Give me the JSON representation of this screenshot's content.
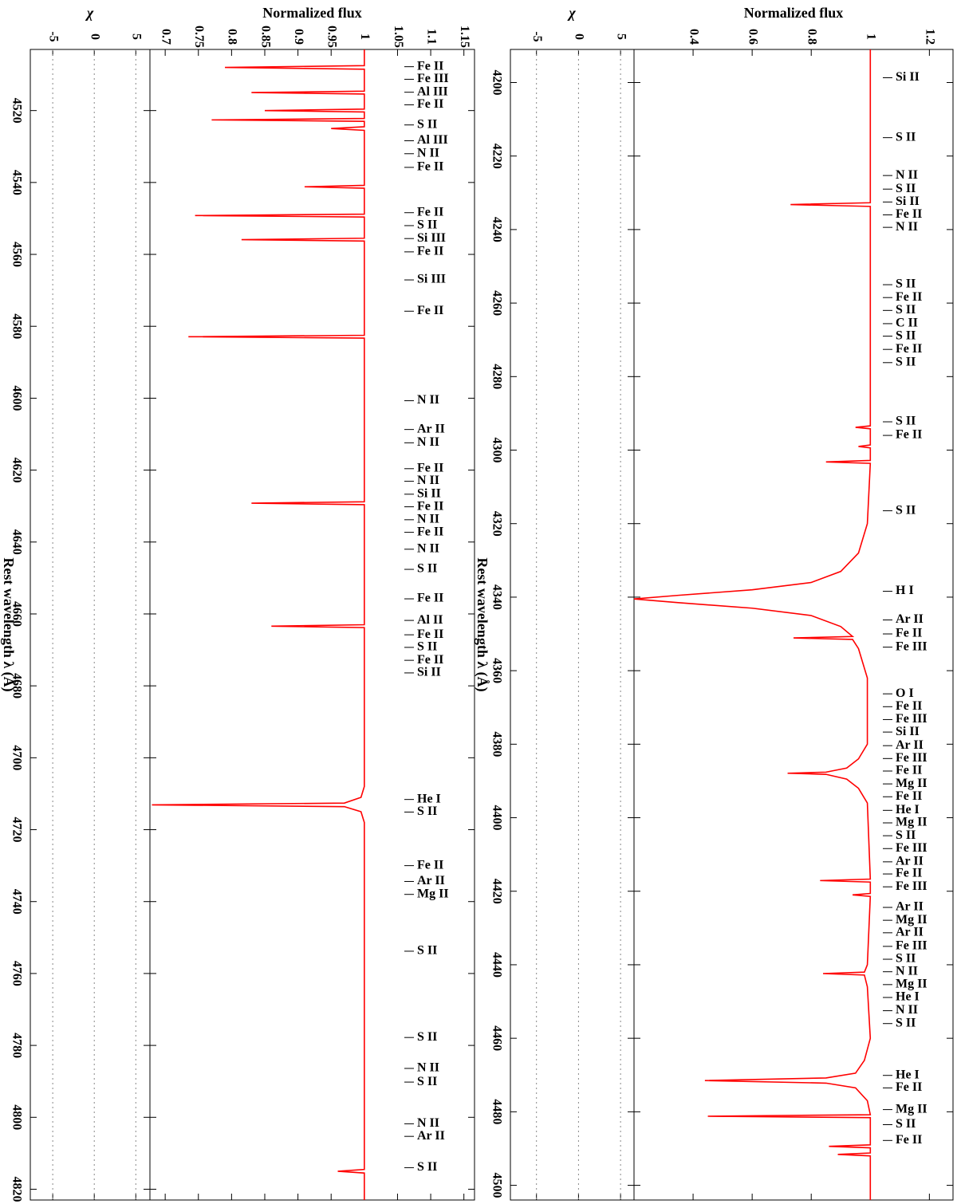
{
  "chart_data": [
    {
      "type": "line",
      "x_label": "Rest wavelength λ (Å)",
      "y_label": "Normalized flux",
      "xlim": [
        4191,
        4504
      ],
      "xticks": [
        4200,
        4220,
        4240,
        4260,
        4280,
        4300,
        4320,
        4340,
        4360,
        4380,
        4400,
        4420,
        4440,
        4460,
        4480,
        4500
      ],
      "ylim": [
        0.2,
        1.28
      ],
      "yticks": [
        0.4,
        0.6,
        0.8,
        1,
        1.2
      ],
      "series": [
        {
          "color": "#ff0000",
          "x": [
            4191,
            4232.7,
            4233.2,
            4233.7,
            4290,
            4293.4,
            4293.8,
            4294.2,
            4298.6,
            4299,
            4299.4,
            4302.8,
            4303.2,
            4303.6,
            4320,
            4328,
            4333,
            4336,
            4338,
            4339.5,
            4340.5,
            4341.5,
            4343,
            4345,
            4348,
            4350.7,
            4351.1,
            4351.5,
            4354,
            4362,
            4380,
            4384,
            4386.5,
            4387.6,
            4387.9,
            4388.2,
            4389.5,
            4392,
            4396,
            4416.7,
            4417.1,
            4417.5,
            4420.6,
            4421,
            4421.4,
            4440,
            4442,
            4442.4,
            4442.8,
            4446,
            4460,
            4466,
            4469.5,
            4470.8,
            4471.5,
            4472.2,
            4473.5,
            4477,
            4480.8,
            4481.2,
            4481.6,
            4489,
            4489.4,
            4489.8,
            4491.2,
            4491.6,
            4492,
            4504
          ],
          "values": [
            1,
            1,
            0.73,
            1,
            1,
            1,
            0.95,
            1,
            1,
            0.96,
            1,
            1,
            0.85,
            1,
            0.99,
            0.96,
            0.9,
            0.8,
            0.6,
            0.35,
            0.2,
            0.35,
            0.6,
            0.8,
            0.9,
            0.94,
            0.74,
            0.94,
            0.96,
            0.99,
            0.99,
            0.96,
            0.92,
            0.85,
            0.72,
            0.85,
            0.92,
            0.96,
            0.99,
            1,
            0.83,
            1,
            1,
            0.94,
            1,
            0.99,
            0.98,
            0.84,
            0.98,
            0.99,
            1,
            0.98,
            0.95,
            0.85,
            0.44,
            0.85,
            0.95,
            0.99,
            1,
            0.45,
            1,
            1,
            0.86,
            1,
            1,
            0.89,
            1,
            1
          ]
        }
      ],
      "residual": {
        "y_label": "χ",
        "ylim": [
          -8.1,
          6.6
        ],
        "yticks": [
          -5,
          0,
          5
        ]
      },
      "line_ids": [
        {
          "label": "Si II",
          "x": 4198.7
        },
        {
          "label": "S II",
          "x": 4215
        },
        {
          "label": "N II",
          "x": 4225.3
        },
        {
          "label": "S II",
          "x": 4229
        },
        {
          "label": "Si II",
          "x": 4232.5
        },
        {
          "label": "Fe II",
          "x": 4236
        },
        {
          "label": "N II",
          "x": 4239.4
        },
        {
          "label": "S II",
          "x": 4255
        },
        {
          "label": "Fe II",
          "x": 4258.5
        },
        {
          "label": "S II",
          "x": 4262
        },
        {
          "label": "C II",
          "x": 4265.6
        },
        {
          "label": "S II",
          "x": 4269
        },
        {
          "label": "Fe II",
          "x": 4272.6
        },
        {
          "label": "S II",
          "x": 4276.2
        },
        {
          "label": "S II",
          "x": 4292.3
        },
        {
          "label": "Fe II",
          "x": 4296
        },
        {
          "label": "S II",
          "x": 4316.5
        },
        {
          "label": "H I",
          "x": 4338.4
        },
        {
          "label": "Ar II",
          "x": 4346.2
        },
        {
          "label": "Fe II",
          "x": 4350
        },
        {
          "label": "Fe III",
          "x": 4353.6
        },
        {
          "label": "O I",
          "x": 4366.3
        },
        {
          "label": "Fe II",
          "x": 4369.8
        },
        {
          "label": "Fe III",
          "x": 4373.3
        },
        {
          "label": "Si II",
          "x": 4376.7
        },
        {
          "label": "Ar II",
          "x": 4380.4
        },
        {
          "label": "Fe III",
          "x": 4383.9
        },
        {
          "label": "Fe II",
          "x": 4387.3
        },
        {
          "label": "Mg II",
          "x": 4390.8
        },
        {
          "label": "Fe II",
          "x": 4394.3
        },
        {
          "label": "He I",
          "x": 4398
        },
        {
          "label": "Mg II",
          "x": 4401.4
        },
        {
          "label": "S II",
          "x": 4404.9
        },
        {
          "label": "Fe III",
          "x": 4408.4
        },
        {
          "label": "Ar II",
          "x": 4412
        },
        {
          "label": "Fe II",
          "x": 4415.3
        },
        {
          "label": "Fe III",
          "x": 4418.8
        },
        {
          "label": "Ar II",
          "x": 4424.4
        },
        {
          "label": "Mg II",
          "x": 4427.9
        },
        {
          "label": "Ar II",
          "x": 4431.3
        },
        {
          "label": "Fe III",
          "x": 4435
        },
        {
          "label": "S II",
          "x": 4438.5
        },
        {
          "label": "N II",
          "x": 4441.9
        },
        {
          "label": "Mg II",
          "x": 4445.4
        },
        {
          "label": "He I",
          "x": 4448.9
        },
        {
          "label": "N II",
          "x": 4452.5
        },
        {
          "label": "S II",
          "x": 4456
        },
        {
          "label": "He I",
          "x": 4470.1
        },
        {
          "label": "Fe II",
          "x": 4473.5
        },
        {
          "label": "Mg II",
          "x": 4479.4
        },
        {
          "label": "S II",
          "x": 4483.5
        },
        {
          "label": "Fe II",
          "x": 4487.8
        }
      ]
    },
    {
      "type": "line",
      "x_label": "Rest wavelength λ (Å)",
      "y_label": "Normalized flux",
      "xlim": [
        4503,
        4823
      ],
      "xticks": [
        4520,
        4540,
        4560,
        4580,
        4600,
        4620,
        4640,
        4660,
        4680,
        4700,
        4720,
        4740,
        4760,
        4780,
        4800,
        4820
      ],
      "ylim": [
        0.677,
        1.166
      ],
      "yticks": [
        0.7,
        0.75,
        0.8,
        0.85,
        0.9,
        0.95,
        1,
        1.05,
        1.1,
        1.15
      ],
      "series": [
        {
          "color": "#ff0000",
          "x": [
            4503,
            4507.5,
            4508,
            4508.5,
            4514.6,
            4515,
            4515.4,
            4519.6,
            4520,
            4520.4,
            4522.2,
            4522.6,
            4523,
            4524.5,
            4525,
            4525.5,
            4540.8,
            4541.2,
            4541.6,
            4548.8,
            4549.2,
            4549.6,
            4555.5,
            4555.9,
            4556.3,
            4582.5,
            4582.9,
            4583.3,
            4628.8,
            4629.2,
            4629.6,
            4663,
            4663.4,
            4663.8,
            4708,
            4711,
            4712.6,
            4713.1,
            4713.6,
            4715,
            4718,
            4814.5,
            4815,
            4815.5,
            4823
          ],
          "values": [
            1,
            1,
            0.79,
            1,
            1,
            0.83,
            1,
            1,
            0.85,
            1,
            1,
            0.77,
            1,
            1,
            0.95,
            1,
            1,
            0.91,
            1,
            1,
            0.745,
            1,
            1,
            0.815,
            1,
            1,
            0.735,
            1,
            1,
            0.83,
            1,
            1,
            0.86,
            1,
            1,
            0.995,
            0.97,
            0.68,
            0.97,
            0.995,
            1,
            1,
            0.96,
            1,
            1
          ]
        }
      ],
      "residual": {
        "y_label": "χ",
        "ylim": [
          -7.7,
          6.7
        ],
        "yticks": [
          -5,
          0,
          5
        ]
      },
      "line_ids": [
        {
          "label": "Fe II",
          "x": 4507.8
        },
        {
          "label": "Fe III",
          "x": 4511.3
        },
        {
          "label": "Al III",
          "x": 4514.9
        },
        {
          "label": "Fe II",
          "x": 4518.4
        },
        {
          "label": "S II",
          "x": 4524
        },
        {
          "label": "Al III",
          "x": 4528.4
        },
        {
          "label": "N II",
          "x": 4532
        },
        {
          "label": "Fe II",
          "x": 4535.8
        },
        {
          "label": "Fe II",
          "x": 4548.4
        },
        {
          "label": "S II",
          "x": 4552
        },
        {
          "label": "Si III",
          "x": 4555.6
        },
        {
          "label": "Fe II",
          "x": 4559.3
        },
        {
          "label": "Si III",
          "x": 4567.1
        },
        {
          "label": "Fe II",
          "x": 4575.8
        },
        {
          "label": "N II",
          "x": 4600.7
        },
        {
          "label": "Ar II",
          "x": 4608.7
        },
        {
          "label": "N II",
          "x": 4612.4
        },
        {
          "label": "Fe II",
          "x": 4619.6
        },
        {
          "label": "N II",
          "x": 4623.1
        },
        {
          "label": "Si II",
          "x": 4626.7
        },
        {
          "label": "Fe II",
          "x": 4630.2
        },
        {
          "label": "N II",
          "x": 4633.8
        },
        {
          "label": "Fe II",
          "x": 4637.3
        },
        {
          "label": "N II",
          "x": 4642
        },
        {
          "label": "S II",
          "x": 4647.6
        },
        {
          "label": "Fe II",
          "x": 4655.8
        },
        {
          "label": "Al II",
          "x": 4661.8
        },
        {
          "label": "Fe II",
          "x": 4665.8
        },
        {
          "label": "S II",
          "x": 4669.3
        },
        {
          "label": "Fe II",
          "x": 4672.9
        },
        {
          "label": "Si II",
          "x": 4676.4
        },
        {
          "label": "He I",
          "x": 4711.6
        },
        {
          "label": "S II",
          "x": 4715.1
        },
        {
          "label": "Fe II",
          "x": 4730
        },
        {
          "label": "Ar II",
          "x": 4734.4
        },
        {
          "label": "Mg II",
          "x": 4738
        },
        {
          "label": "S II",
          "x": 4753.8
        },
        {
          "label": "S II",
          "x": 4777.8
        },
        {
          "label": "N II",
          "x": 4786.4
        },
        {
          "label": "S II",
          "x": 4790.2
        },
        {
          "label": "N II",
          "x": 4801.8
        },
        {
          "label": "Ar II",
          "x": 4805.3
        },
        {
          "label": "S II",
          "x": 4814
        }
      ]
    }
  ]
}
